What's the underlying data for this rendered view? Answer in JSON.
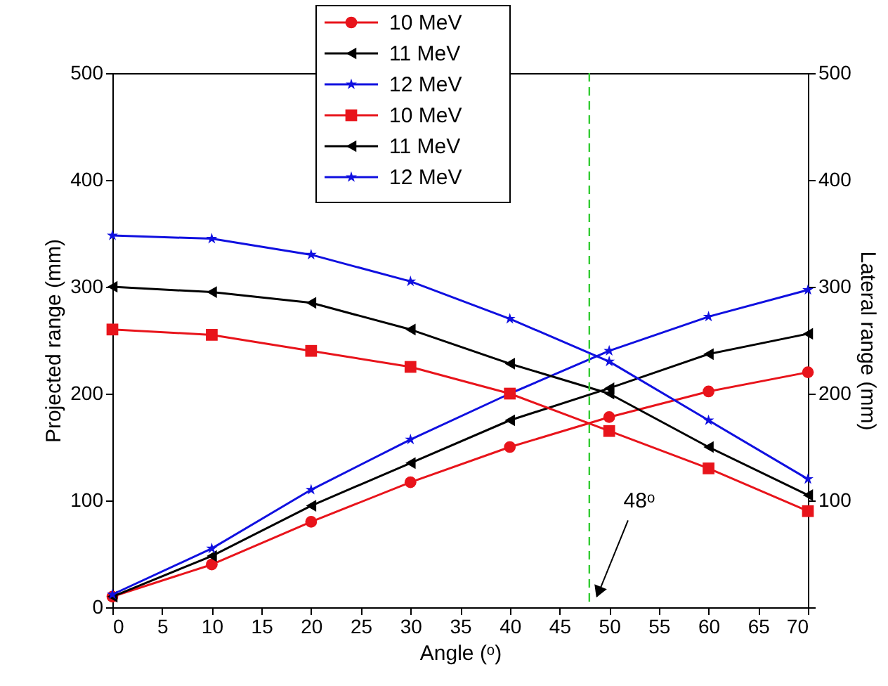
{
  "chart_data": {
    "type": "line",
    "xlabel": "Angle (ᵒ)",
    "ylabel": "Projected range (mm)",
    "y2label": "Lateral range (mm)",
    "x": [
      0,
      10,
      20,
      30,
      40,
      50,
      60,
      70
    ],
    "xlim": [
      0,
      70
    ],
    "xticks": [
      0,
      5,
      10,
      15,
      20,
      25,
      30,
      35,
      40,
      45,
      50,
      55,
      60,
      65,
      70
    ],
    "ylim": [
      0,
      500
    ],
    "yticks": [
      0,
      100,
      200,
      300,
      400,
      500
    ],
    "y2lim": [
      0,
      500
    ],
    "y2ticks": [
      {
        "value": 0,
        "label": null
      },
      100,
      200,
      300,
      400,
      500
    ],
    "grid": false,
    "legend": "top",
    "line_style": "solid",
    "series": [
      {
        "name": "10 MeV",
        "color": "#e8141b",
        "marker": "circle",
        "axis": "y2",
        "values": [
          10,
          40,
          80,
          117,
          150,
          178,
          202,
          220
        ]
      },
      {
        "name": "11 MeV",
        "color": "#000000",
        "marker": "triangle",
        "axis": "y2",
        "values": [
          10,
          48,
          95,
          135,
          175,
          205,
          237,
          256
        ]
      },
      {
        "name": "12 MeV",
        "color": "#1010e0",
        "marker": "star",
        "axis": "y2",
        "values": [
          12,
          55,
          110,
          157,
          200,
          240,
          272,
          297
        ]
      },
      {
        "name": "10 MeV",
        "color": "#e8141b",
        "marker": "square",
        "values": [
          260,
          255,
          240,
          225,
          200,
          165,
          130,
          90
        ]
      },
      {
        "name": "11 MeV",
        "color": "#000000",
        "marker": "triangle",
        "values": [
          300,
          295,
          285,
          260,
          228,
          200,
          150,
          105
        ]
      },
      {
        "name": "12 MeV",
        "color": "#1010e0",
        "marker": "star",
        "values": [
          348,
          345,
          330,
          305,
          270,
          230,
          175,
          120
        ]
      }
    ],
    "ref_lines": [
      {
        "axis": "x",
        "value": 48,
        "color": "#33cc33",
        "line_style": "dashed"
      }
    ],
    "annotations": [
      {
        "text": "48ᵒ",
        "x": 48.5,
        "y": 5
      }
    ]
  }
}
